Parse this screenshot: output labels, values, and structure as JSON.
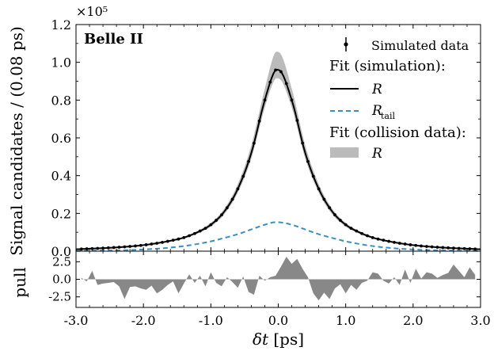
{
  "chart_data": {
    "type": "line",
    "label": "Belle II",
    "xlabel_parts": [
      "δt",
      " [ps]"
    ],
    "xticks": [
      "-3.0",
      "-2.0",
      "-1.0",
      "0.0",
      "1.0",
      "2.0",
      "3.0"
    ],
    "xlim": [
      -3.0,
      3.0
    ],
    "main": {
      "ylabel": "Signal candidates / (0.08 ps)",
      "yscale_label": "×10⁵",
      "ylim": [
        0,
        1.2
      ],
      "yticks": [
        "0.0",
        "0.2",
        "0.4",
        "0.6",
        "0.8",
        "1.0",
        "1.2"
      ],
      "colors": {
        "fit_sim": "#000000",
        "tail": "#3a8fc0",
        "collision_band": "#bbbbbb"
      },
      "legend": {
        "placement": "top-right",
        "sim_data": "Simulated data",
        "fit_sim_header": "Fit (simulation):",
        "fit_sim_R": "R",
        "fit_sim_tail_base": "R",
        "fit_sim_tail_sub": "tail",
        "fit_coll_header": "Fit (collision data):",
        "fit_coll_R": "R"
      },
      "x": [
        -3.0,
        -2.8,
        -2.6,
        -2.4,
        -2.2,
        -2.0,
        -1.8,
        -1.6,
        -1.4,
        -1.2,
        -1.0,
        -0.8,
        -0.6,
        -0.4,
        -0.2,
        -0.05,
        0.0,
        0.2,
        0.4,
        0.6,
        0.8,
        1.0,
        1.2,
        1.4,
        1.6,
        1.8,
        2.0,
        2.2,
        2.4,
        2.6,
        2.8,
        3.0
      ],
      "series": [
        {
          "name": "R (fit simulation)",
          "style": "solid",
          "values": [
            0.01,
            0.013,
            0.016,
            0.02,
            0.025,
            0.032,
            0.042,
            0.055,
            0.072,
            0.1,
            0.14,
            0.21,
            0.33,
            0.52,
            0.8,
            0.955,
            0.96,
            0.8,
            0.52,
            0.33,
            0.21,
            0.14,
            0.1,
            0.072,
            0.055,
            0.042,
            0.032,
            0.025,
            0.02,
            0.016,
            0.013,
            0.01
          ]
        },
        {
          "name": "R_tail (fit simulation)",
          "style": "dashed",
          "values": [
            0.001,
            0.002,
            0.003,
            0.004,
            0.006,
            0.009,
            0.013,
            0.019,
            0.027,
            0.038,
            0.052,
            0.07,
            0.09,
            0.115,
            0.14,
            0.153,
            0.153,
            0.14,
            0.115,
            0.09,
            0.07,
            0.052,
            0.038,
            0.027,
            0.019,
            0.013,
            0.009,
            0.006,
            0.004,
            0.003,
            0.002,
            0.001
          ]
        },
        {
          "name": "R (fit collision data)",
          "style": "band",
          "lower": [
            0.008,
            0.011,
            0.014,
            0.018,
            0.023,
            0.029,
            0.039,
            0.051,
            0.067,
            0.093,
            0.13,
            0.195,
            0.31,
            0.49,
            0.76,
            0.91,
            0.915,
            0.76,
            0.49,
            0.31,
            0.195,
            0.13,
            0.093,
            0.067,
            0.051,
            0.039,
            0.029,
            0.023,
            0.018,
            0.014,
            0.011,
            0.008
          ],
          "upper": [
            0.012,
            0.015,
            0.018,
            0.022,
            0.027,
            0.035,
            0.045,
            0.059,
            0.077,
            0.107,
            0.15,
            0.225,
            0.355,
            0.56,
            0.86,
            1.05,
            1.055,
            0.86,
            0.56,
            0.355,
            0.225,
            0.15,
            0.107,
            0.077,
            0.059,
            0.045,
            0.035,
            0.027,
            0.022,
            0.018,
            0.015,
            0.012
          ]
        }
      ],
      "sim_points_x": [
        -2.92,
        -2.84,
        -2.76,
        -2.68,
        -2.6,
        -2.52,
        -2.44,
        -2.36,
        -2.28,
        -2.2,
        -2.12,
        -2.04,
        -1.96,
        -1.88,
        -1.8,
        -1.72,
        -1.64,
        -1.56,
        -1.48,
        -1.4,
        -1.32,
        -1.24,
        -1.16,
        -1.08,
        -1.0,
        -0.92,
        -0.84,
        -0.76,
        -0.68,
        -0.6,
        -0.52,
        -0.44,
        -0.36,
        -0.28,
        -0.2,
        -0.12,
        -0.04,
        0.04,
        0.12,
        0.2,
        0.28,
        0.36,
        0.44,
        0.52,
        0.6,
        0.68,
        0.76,
        0.84,
        0.92,
        1.0,
        1.08,
        1.16,
        1.24,
        1.32,
        1.4,
        1.48,
        1.56,
        1.64,
        1.72,
        1.8,
        1.88,
        1.96,
        2.04,
        2.12,
        2.2,
        2.28,
        2.36,
        2.44,
        2.52,
        2.6,
        2.68,
        2.76,
        2.84,
        2.92
      ]
    },
    "pull": {
      "ylabel": "pull",
      "ylim": [
        -4,
        4
      ],
      "yticks": [
        "2.5",
        "0.0",
        "-2.5"
      ],
      "ytick_values": [
        2.5,
        0,
        -2.5
      ],
      "color": "#888888",
      "x": [
        -2.92,
        -2.84,
        -2.76,
        -2.68,
        -2.6,
        -2.52,
        -2.44,
        -2.36,
        -2.28,
        -2.2,
        -2.12,
        -2.04,
        -1.96,
        -1.88,
        -1.8,
        -1.72,
        -1.64,
        -1.56,
        -1.48,
        -1.4,
        -1.32,
        -1.24,
        -1.16,
        -1.08,
        -1.0,
        -0.92,
        -0.84,
        -0.76,
        -0.68,
        -0.6,
        -0.52,
        -0.44,
        -0.36,
        -0.28,
        -0.2,
        -0.12,
        -0.04,
        0.04,
        0.12,
        0.2,
        0.28,
        0.36,
        0.44,
        0.52,
        0.6,
        0.68,
        0.76,
        0.84,
        0.92,
        1.0,
        1.08,
        1.16,
        1.24,
        1.32,
        1.4,
        1.48,
        1.56,
        1.64,
        1.72,
        1.8,
        1.88,
        1.96,
        2.04,
        2.12,
        2.2,
        2.28,
        2.36,
        2.44,
        2.52,
        2.6,
        2.68,
        2.76,
        2.84,
        2.92
      ],
      "values": [
        0.2,
        -0.3,
        1.2,
        -0.8,
        -0.6,
        -0.5,
        -0.4,
        -1.0,
        -2.8,
        -1.1,
        -1.0,
        -1.3,
        -1.5,
        -0.9,
        -2.0,
        -1.5,
        -0.8,
        -0.3,
        -2.0,
        -0.6,
        0.7,
        -0.5,
        0.5,
        -1.0,
        1.0,
        -0.5,
        -1.0,
        0.3,
        -0.4,
        -1.2,
        0.4,
        -1.8,
        -2.2,
        0.5,
        -0.2,
        0.3,
        0.5,
        1.8,
        3.2,
        2.2,
        2.9,
        1.5,
        0.3,
        -2.0,
        -3.0,
        -1.9,
        -2.8,
        -1.3,
        -0.7,
        -2.0,
        -0.8,
        -1.5,
        -0.5,
        -0.2,
        1.0,
        0.8,
        -0.2,
        -0.6,
        0.3,
        -0.8,
        1.4,
        -0.5,
        1.5,
        0.1,
        1.0,
        0.8,
        0.2,
        0.6,
        0.9,
        2.1,
        1.2,
        0.3,
        1.7,
        0.6
      ]
    }
  }
}
